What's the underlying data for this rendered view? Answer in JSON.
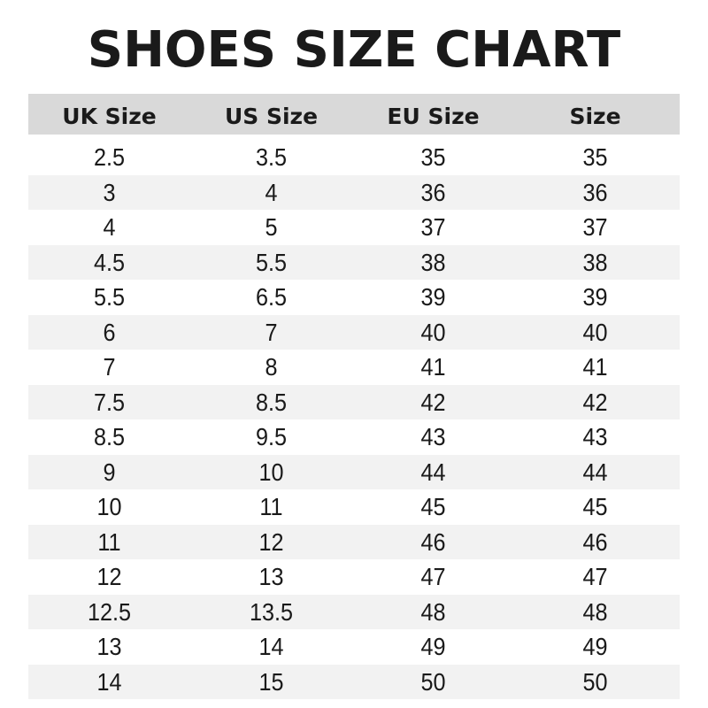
{
  "title": "SHOES SIZE CHART",
  "columns": [
    "UK Size",
    "US Size",
    "EU Size",
    "Size"
  ],
  "rows": [
    [
      "2.5",
      "3.5",
      "35",
      "35"
    ],
    [
      "3",
      "4",
      "36",
      "36"
    ],
    [
      "4",
      "5",
      "37",
      "37"
    ],
    [
      "4.5",
      "5.5",
      "38",
      "38"
    ],
    [
      "5.5",
      "6.5",
      "39",
      "39"
    ],
    [
      "6",
      "7",
      "40",
      "40"
    ],
    [
      "7",
      "8",
      "41",
      "41"
    ],
    [
      "7.5",
      "8.5",
      "42",
      "42"
    ],
    [
      "8.5",
      "9.5",
      "43",
      "43"
    ],
    [
      "9",
      "10",
      "44",
      "44"
    ],
    [
      "10",
      "11",
      "45",
      "45"
    ],
    [
      "11",
      "12",
      "46",
      "46"
    ],
    [
      "12",
      "13",
      "47",
      "47"
    ],
    [
      "12.5",
      "13.5",
      "48",
      "48"
    ],
    [
      "13",
      "14",
      "49",
      "49"
    ],
    [
      "14",
      "15",
      "50",
      "50"
    ]
  ],
  "colors": {
    "header_bg": "#d9d9d9",
    "stripe_bg": "#f2f2f2",
    "text": "#1a1a1a"
  }
}
